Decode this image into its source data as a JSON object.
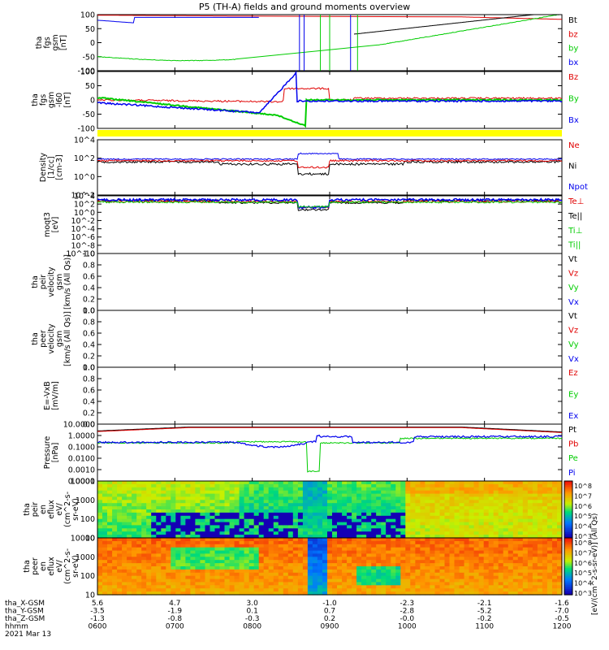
{
  "title": "P5 (TH-A) fields and ground moments overview",
  "colors": {
    "black": "#000000",
    "red": "#e00000",
    "green": "#00cc00",
    "blue": "#0000ee",
    "yellow": "#ffff00"
  },
  "chart_data": {
    "type": "line",
    "x_axis": {
      "time_start": "0600",
      "time_end": "1200",
      "hhmm_ticks": [
        "0600",
        "0700",
        "0800",
        "0900",
        "1000",
        "1100",
        "1200"
      ],
      "date": "2021 Mar 13",
      "ephemeris_rows": [
        {
          "label": "tha_X-GSM",
          "values": [
            "5.6",
            "4.7",
            "3.0",
            "-1.0",
            "-2.3",
            "-2.1",
            "-1.6"
          ]
        },
        {
          "label": "tha_Y-GSM",
          "values": [
            "-3.5",
            "-1.9",
            "0.1",
            "0.7",
            "-2.8",
            "-5.2",
            "-7.0"
          ]
        },
        {
          "label": "tha_Z-GSM",
          "values": [
            "-1.3",
            "-0.8",
            "-0.3",
            "0.2",
            "-0.0",
            "-0.2",
            "-0.5"
          ]
        },
        {
          "label": "hhmm",
          "values": [
            "0600",
            "0700",
            "0800",
            "0900",
            "1000",
            "1100",
            "1200"
          ]
        }
      ]
    },
    "panels": [
      {
        "id": "fgs",
        "ylabel": [
          "tha",
          "fgs",
          "gsm",
          "[nT]"
        ],
        "ylim": [
          -100,
          100
        ],
        "yticks": [
          "100",
          "50",
          "0",
          "-50",
          "-100"
        ],
        "legend": [
          {
            "name": "Bt",
            "color": "#000000"
          },
          {
            "name": "bz",
            "color": "#e00000"
          },
          {
            "name": "by",
            "color": "#00cc00"
          },
          {
            "name": "bx",
            "color": "#0000ee"
          }
        ]
      },
      {
        "id": "fgm",
        "ylabel": [
          "tha",
          "fgs",
          "gsm",
          "-l60",
          "[nT]"
        ],
        "ylim": [
          -120,
          100
        ],
        "yticks": [
          "100",
          "50",
          "0",
          "-50",
          "-100"
        ],
        "legend": [
          {
            "name": "Bz",
            "color": "#e00000"
          },
          {
            "name": "By",
            "color": "#00cc00"
          },
          {
            "name": "Bx",
            "color": "#0000ee"
          }
        ]
      },
      {
        "id": "density",
        "ylabel": [
          "Density",
          "[1/cc]",
          "[cm-3]"
        ],
        "yticks": [
          "10^4",
          "10^2",
          "10^0",
          "10^-2"
        ],
        "legend": [
          {
            "name": "Ne",
            "color": "#e00000"
          },
          {
            "name": "Ni",
            "color": "#000000"
          },
          {
            "name": "Npot",
            "color": "#0000ee"
          }
        ]
      },
      {
        "id": "temp",
        "ylabel": [
          "moqt3",
          "[eV]"
        ],
        "yticks": [
          "10^4",
          "10^2",
          "10^0",
          "10^-2",
          "10^-4",
          "10^-6",
          "10^-8",
          "10^-10"
        ],
        "legend": [
          {
            "name": "Te⊥",
            "color": "#e00000"
          },
          {
            "name": "Te||",
            "color": "#000000"
          },
          {
            "name": "Ti⊥",
            "color": "#00cc00"
          },
          {
            "name": "Ti||",
            "color": "#00cc00"
          }
        ]
      },
      {
        "id": "peir_vel",
        "ylabel": [
          "tha",
          "peir",
          "velocity",
          "gsm",
          "[km/s (All Qs)]"
        ],
        "yticks": [
          "1.0",
          "0.8",
          "0.6",
          "0.4",
          "0.2",
          "0.0"
        ],
        "legend": [
          {
            "name": "Vt",
            "color": "#000000"
          },
          {
            "name": "Vz",
            "color": "#e00000"
          },
          {
            "name": "Vy",
            "color": "#00cc00"
          },
          {
            "name": "Vx",
            "color": "#0000ee"
          }
        ]
      },
      {
        "id": "peer_vel",
        "ylabel": [
          "tha",
          "peer",
          "velocity",
          "gsm",
          "[km/s (All Qs)]"
        ],
        "yticks": [
          "1.0",
          "0.8",
          "0.6",
          "0.4",
          "0.2",
          "0.0"
        ],
        "legend": [
          {
            "name": "Vt",
            "color": "#000000"
          },
          {
            "name": "Vz",
            "color": "#e00000"
          },
          {
            "name": "Vy",
            "color": "#00cc00"
          },
          {
            "name": "Vx",
            "color": "#0000ee"
          }
        ]
      },
      {
        "id": "efield",
        "ylabel": [
          "E=-VxB",
          "[mV/m]"
        ],
        "yticks": [
          "1.0",
          "0.8",
          "0.6",
          "0.4",
          "0.2",
          "0.0"
        ],
        "legend": [
          {
            "name": "Ez",
            "color": "#e00000"
          },
          {
            "name": "Ey",
            "color": "#00cc00"
          },
          {
            "name": "Ex",
            "color": "#0000ee"
          }
        ]
      },
      {
        "id": "pressure",
        "ylabel": [
          "Pressure",
          "[nPa]"
        ],
        "yticks": [
          "10.0000",
          "1.0000",
          "0.1000",
          "0.0100",
          "0.0010",
          "0.0001"
        ],
        "legend": [
          {
            "name": "Pt",
            "color": "#000000"
          },
          {
            "name": "Pb",
            "color": "#e00000"
          },
          {
            "name": "Pe",
            "color": "#00cc00"
          },
          {
            "name": "Pi",
            "color": "#0000ee"
          }
        ]
      },
      {
        "id": "peir_eflux",
        "ylabel": [
          "tha",
          "peir",
          "en",
          "eflux",
          "eV/",
          "(cm^2-s-",
          "sr-eV)"
        ],
        "yticks": [
          "10000",
          "1000",
          "100",
          "10"
        ],
        "colorbar_label": "[eV/(cm^2-s-sr-eV)] (All Qs)",
        "colorbar_ticks": [
          "10^8",
          "10^7",
          "10^6",
          "10^5",
          "10^4",
          "10^3"
        ]
      },
      {
        "id": "peer_eflux",
        "ylabel": [
          "tha",
          "peer",
          "en",
          "eflux",
          "eV/",
          "(cm^2-s-",
          "sr-eV)"
        ],
        "yticks": [
          "10000",
          "1000",
          "100",
          "10"
        ],
        "colorbar_label": "[eV/(cm^2-s-sr-eV)]",
        "colorbar_ticks": [
          "10^8",
          "10^7",
          "10^6",
          "10^5",
          "10^4",
          "10^3"
        ]
      }
    ]
  }
}
